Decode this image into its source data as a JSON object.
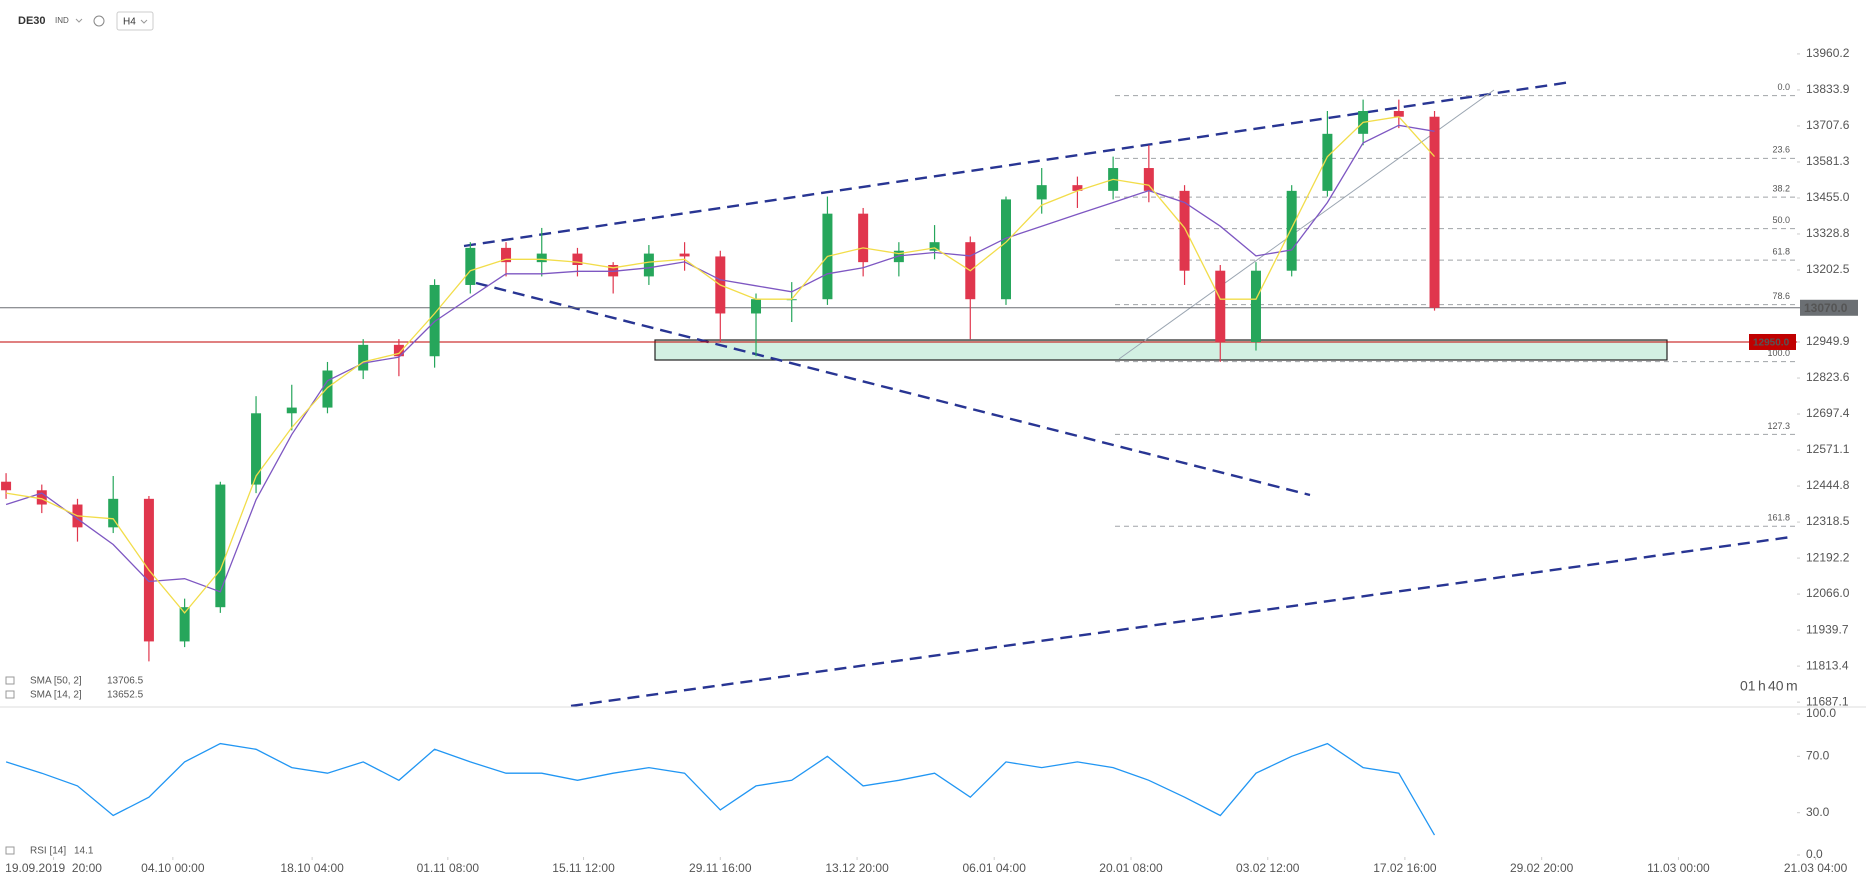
{
  "chart_data": [
    {
      "type": "candlestick",
      "symbol": "DE30",
      "market": "IND",
      "timeframe": "H4",
      "xlim": [
        -0.17,
        51.83
      ],
      "xticks": [
        {
          "value": 1.33,
          "label": "19.09.2019  20:00"
        },
        {
          "value": 4.67,
          "label": "04.10 00:00"
        },
        {
          "value": 8.57,
          "label": "18.10 04:00"
        },
        {
          "value": 12.37,
          "label": "01.11 08:00"
        },
        {
          "value": 16.17,
          "label": "15.11 12:00"
        },
        {
          "value": 20,
          "label": "29.11 16:00"
        },
        {
          "value": 23.83,
          "label": "13.12 20:00"
        },
        {
          "value": 27.67,
          "label": "06.01 04:00"
        },
        {
          "value": 31.5,
          "label": "20.01 08:00"
        },
        {
          "value": 35.33,
          "label": "03.02 12:00"
        },
        {
          "value": 39.17,
          "label": "17.02 16:00"
        },
        {
          "value": 43,
          "label": "29.02 20:00"
        },
        {
          "value": 46.83,
          "label": "11.03 00:00"
        },
        {
          "value": 50.67,
          "label": "21.03 04:00"
        }
      ],
      "ylim": [
        11670,
        14002
      ],
      "yticks": [
        13960.2,
        13833.9,
        13707.6,
        13581.3,
        {
          "value": 13455.0,
          "label": "13455.0"
        },
        13328.8,
        13202.5,
        12949.9,
        12823.6,
        12697.4,
        12571.1,
        12444.8,
        12318.5,
        12192.2,
        {
          "value": 12066.0,
          "label": "12066.0"
        },
        11939.7,
        11813.4,
        11687.1
      ],
      "open": [
        12460,
        12430,
        12380,
        12300,
        12400,
        11900,
        12020,
        12450,
        12700,
        12720,
        12850,
        12940,
        12900,
        13150,
        13280,
        13230,
        13260,
        13220,
        13180,
        13260,
        13250,
        13050,
        13100,
        13100,
        13400,
        13230,
        13270,
        13300,
        13100,
        13450,
        13500,
        13480,
        13560,
        13480,
        13200,
        12950,
        13200,
        13480,
        13680,
        13760,
        13740
      ],
      "high": [
        12490,
        12450,
        12400,
        12480,
        12410,
        12050,
        12460,
        12760,
        12800,
        12880,
        12960,
        12960,
        13170,
        13300,
        13300,
        13350,
        13280,
        13230,
        13290,
        13300,
        13270,
        13120,
        13160,
        13460,
        13420,
        13300,
        13360,
        13320,
        13460,
        13560,
        13530,
        13600,
        13640,
        13500,
        13220,
        13230,
        13500,
        13760,
        13800,
        13800,
        13760
      ],
      "low": [
        12400,
        12350,
        12250,
        12280,
        11830,
        11880,
        12000,
        12420,
        12640,
        12700,
        12820,
        12830,
        12860,
        13120,
        13180,
        13180,
        13180,
        13120,
        13150,
        13200,
        12950,
        12900,
        13020,
        13080,
        13180,
        13180,
        13240,
        12960,
        13080,
        13400,
        13420,
        13450,
        13440,
        13150,
        12880,
        12920,
        13180,
        13460,
        13640,
        13700,
        13060
      ],
      "close": [
        12430,
        12380,
        12300,
        12400,
        11900,
        12020,
        12450,
        12700,
        12720,
        12850,
        12940,
        12900,
        13150,
        13280,
        13230,
        13260,
        13220,
        13180,
        13260,
        13250,
        13050,
        13100,
        13100,
        13400,
        13230,
        13270,
        13300,
        13100,
        13450,
        13500,
        13480,
        13560,
        13480,
        13200,
        12950,
        13200,
        13480,
        13680,
        13760,
        13740,
        13070
      ],
      "up_color": "#26a65b",
      "down_color": "#e0364d",
      "series": [
        {
          "name": "SMA [50, 2]",
          "last": 13706.5,
          "color": "#7e57c2",
          "values": [
            12380,
            12420,
            12330,
            12240,
            12110,
            12120,
            12074,
            12397,
            12626,
            12814,
            12876,
            12897,
            13022,
            13106,
            13189,
            13189,
            13198,
            13198,
            13210,
            13231,
            13168,
            13147,
            13126,
            13189,
            13210,
            13252,
            13264,
            13252,
            13314,
            13356,
            13398,
            13439,
            13481,
            13439,
            13356,
            13252,
            13273,
            13439,
            13648,
            13710,
            13689
          ]
        },
        {
          "name": "SMA [14, 2]",
          "last": 13652.5,
          "color": "#f2dd4a",
          "values": [
            12420,
            12400,
            12340,
            12330,
            12150,
            12000,
            12150,
            12480,
            12650,
            12790,
            12880,
            12910,
            13050,
            13200,
            13240,
            13240,
            13230,
            13210,
            13230,
            13240,
            13150,
            13100,
            13100,
            13250,
            13280,
            13260,
            13280,
            13200,
            13300,
            13430,
            13480,
            13520,
            13500,
            13350,
            13100,
            13100,
            13350,
            13600,
            13720,
            13740,
            13600
          ]
        }
      ],
      "price_lines": [
        {
          "value": 13070,
          "label": "13070.0",
          "color": "#6b6f73"
        },
        {
          "value": 12950,
          "label": "12950.0",
          "color": "#c00000"
        }
      ],
      "fib_levels": [
        {
          "label": "0.0",
          "value": 13814
        },
        {
          "label": "23.6",
          "value": 13594
        },
        {
          "label": "38.2",
          "value": 13458
        },
        {
          "label": "50.0",
          "value": 13347.5
        },
        {
          "label": "61.8",
          "value": 13237
        },
        {
          "label": "78.6",
          "value": 13081
        },
        {
          "label": "100.0",
          "value": 12881
        },
        {
          "label": "127.3",
          "value": 12626
        },
        {
          "label": "161.8",
          "value": 12304
        }
      ],
      "countdown": [
        "01",
        "h",
        "40",
        "m"
      ]
    },
    {
      "type": "line",
      "label": "RSI [14]",
      "last": 14.1,
      "color": "#2196f3",
      "ylim": [
        0,
        100
      ],
      "yticks": [
        {
          "value": 100,
          "label": "100.0"
        },
        {
          "value": 70,
          "label": "70.0"
        },
        {
          "value": 30,
          "label": "30.0"
        },
        {
          "value": 0,
          "label": "0.0"
        }
      ],
      "values": [
        66,
        58,
        49,
        28,
        41,
        66,
        79,
        75,
        62,
        58,
        66,
        53,
        75,
        66,
        58,
        58,
        53,
        58,
        62,
        58,
        32,
        49,
        53,
        70,
        49,
        53,
        58,
        41,
        66,
        62,
        66,
        62,
        53,
        41,
        28,
        58,
        70,
        79,
        62,
        58,
        14.1
      ]
    }
  ]
}
